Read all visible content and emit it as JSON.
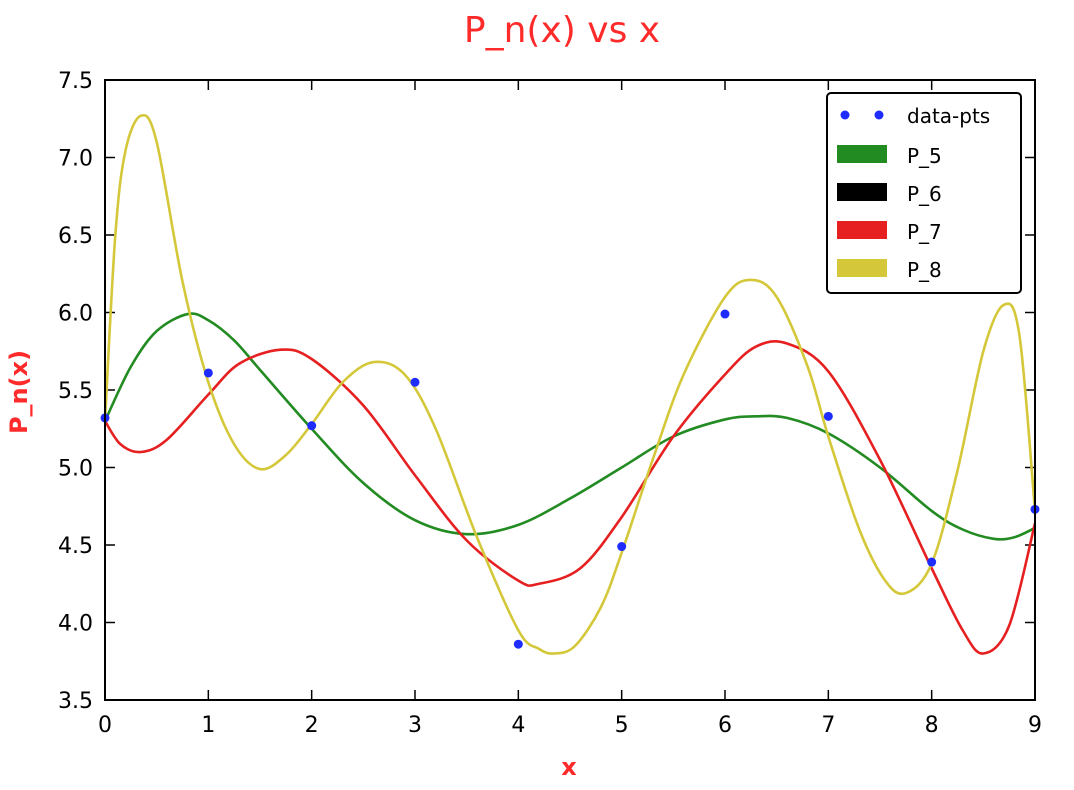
{
  "chart_data": {
    "type": "line",
    "title": "P_n(x) vs x",
    "xlabel": "x",
    "ylabel": "P_n(x)",
    "xlim": [
      0,
      9
    ],
    "ylim": [
      3.5,
      7.5
    ],
    "xticks": [
      "0",
      "1",
      "2",
      "3",
      "4",
      "5",
      "6",
      "7",
      "8",
      "9"
    ],
    "yticks": [
      "3.5",
      "4.0",
      "4.5",
      "5.0",
      "5.5",
      "6.0",
      "6.5",
      "7.0",
      "7.5"
    ],
    "grid": false,
    "legend_position": "top-right",
    "colors": {
      "title": "#ff2a2a",
      "labels": "#ff2a2a",
      "points": "#1f2cff"
    },
    "points": {
      "name": "data-pts",
      "x": [
        0,
        1,
        2,
        3,
        4,
        5,
        6,
        7,
        8,
        9
      ],
      "y": [
        5.32,
        5.61,
        5.27,
        5.55,
        3.86,
        4.49,
        5.99,
        5.33,
        4.39,
        4.73
      ]
    },
    "series": [
      {
        "name": "P_5",
        "color": "#228b22",
        "x": [
          0,
          0.25,
          0.5,
          0.8,
          1,
          1.25,
          1.5,
          2,
          2.5,
          3,
          3.5,
          4,
          4.5,
          5,
          5.5,
          6,
          6.3,
          6.6,
          7,
          7.5,
          8,
          8.3,
          8.6,
          8.8,
          9
        ],
        "y": [
          5.3,
          5.65,
          5.88,
          5.99,
          5.95,
          5.82,
          5.63,
          5.25,
          4.9,
          4.66,
          4.57,
          4.63,
          4.8,
          5.0,
          5.2,
          5.31,
          5.33,
          5.32,
          5.22,
          5.0,
          4.72,
          4.6,
          4.54,
          4.55,
          4.61
        ]
      },
      {
        "name": "P_6",
        "color": "#000000",
        "x": [],
        "y": []
      },
      {
        "name": "P_7",
        "color": "#e62020",
        "x": [
          0,
          0.15,
          0.35,
          0.6,
          1,
          1.3,
          1.7,
          2,
          2.5,
          3,
          3.5,
          4,
          4.2,
          4.6,
          5,
          5.5,
          6,
          6.3,
          6.6,
          7,
          7.5,
          8,
          8.3,
          8.5,
          8.75,
          9
        ],
        "y": [
          5.3,
          5.15,
          5.1,
          5.18,
          5.47,
          5.67,
          5.76,
          5.7,
          5.4,
          4.95,
          4.53,
          4.27,
          4.25,
          4.35,
          4.68,
          5.2,
          5.6,
          5.78,
          5.8,
          5.62,
          5.05,
          4.35,
          3.95,
          3.8,
          3.98,
          4.64
        ]
      },
      {
        "name": "P_8",
        "color": "#d4c83a",
        "x": [
          0,
          0.1,
          0.2,
          0.35,
          0.5,
          0.75,
          1,
          1.25,
          1.5,
          1.75,
          2,
          2.3,
          2.6,
          2.9,
          3.2,
          3.6,
          4,
          4.2,
          4.35,
          4.55,
          4.8,
          5,
          5.3,
          5.6,
          6,
          6.25,
          6.5,
          6.8,
          7,
          7.3,
          7.55,
          7.75,
          8,
          8.25,
          8.5,
          8.7,
          8.85,
          9
        ],
        "y": [
          5.3,
          6.5,
          7.05,
          7.27,
          7.1,
          6.2,
          5.55,
          5.15,
          4.99,
          5.08,
          5.28,
          5.55,
          5.68,
          5.6,
          5.25,
          4.55,
          3.95,
          3.83,
          3.8,
          3.85,
          4.1,
          4.45,
          5.05,
          5.6,
          6.1,
          6.21,
          6.1,
          5.65,
          5.2,
          4.6,
          4.27,
          4.19,
          4.38,
          4.98,
          5.75,
          6.05,
          5.85,
          4.72
        ]
      }
    ]
  }
}
